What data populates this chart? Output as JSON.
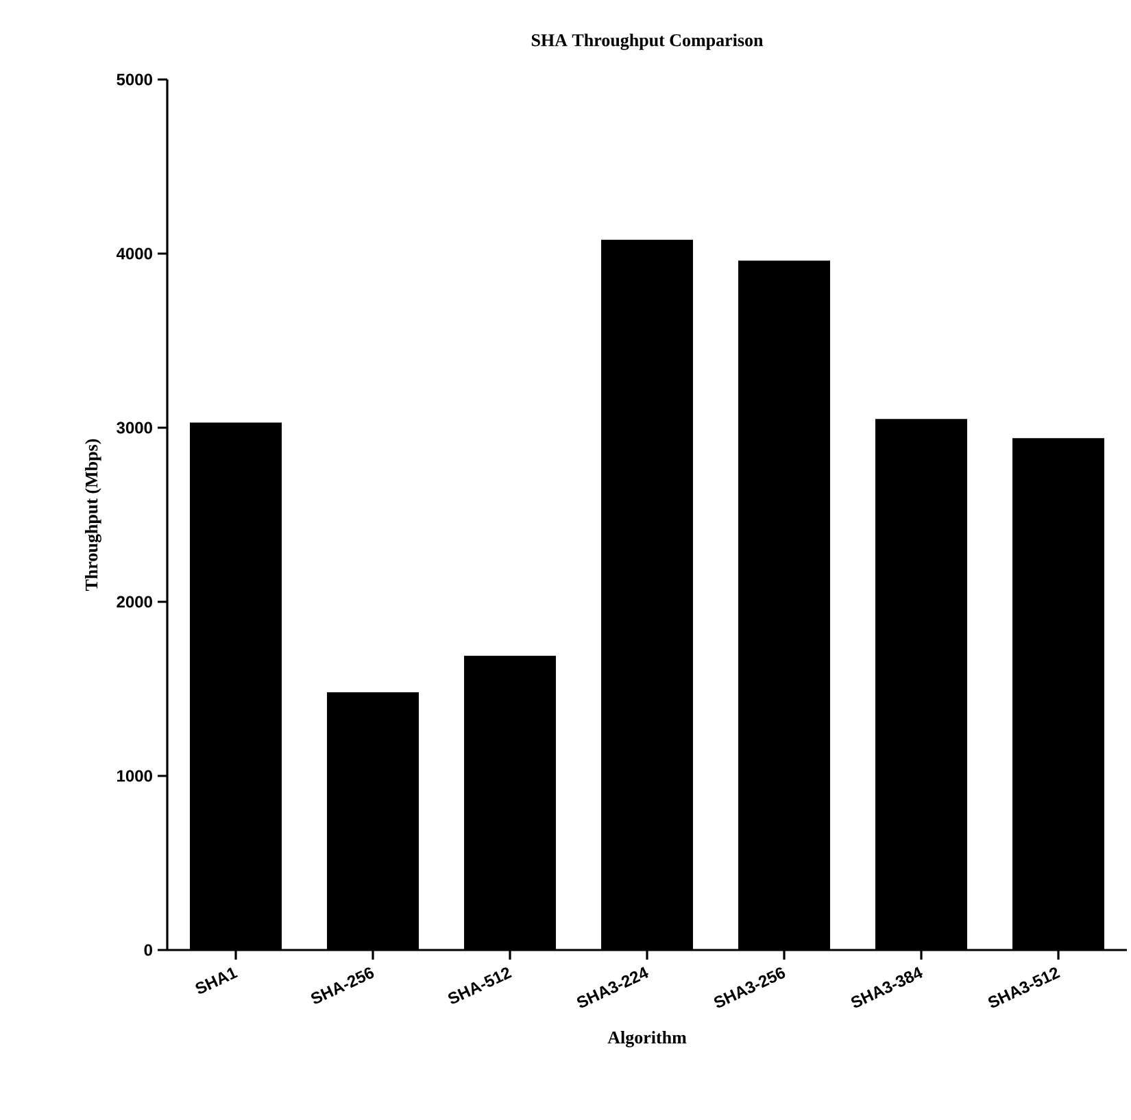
{
  "chart_data": {
    "type": "bar",
    "title": "SHA Throughput Comparison",
    "xlabel": "Algorithm",
    "ylabel": "Throughput (Mbps)",
    "categories": [
      "SHA1",
      "SHA-256",
      "SHA-512",
      "SHA3-224",
      "SHA3-256",
      "SHA3-384",
      "SHA3-512"
    ],
    "values": [
      3030,
      1480,
      1690,
      4080,
      3960,
      3050,
      2940
    ],
    "color": "#000000",
    "ylim": [
      0,
      5000
    ],
    "yticks": [
      0,
      1000,
      2000,
      3000,
      4000,
      5000
    ],
    "grid": false
  }
}
